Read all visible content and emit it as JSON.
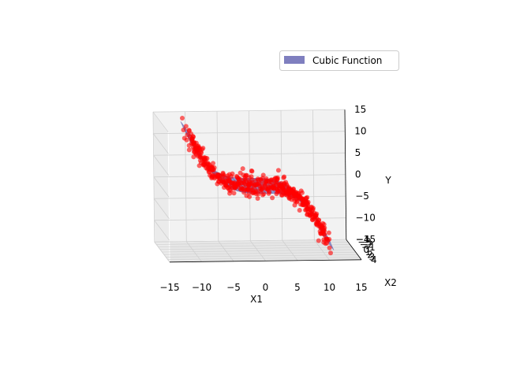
{
  "chart_data": {
    "type": "scatter",
    "projection": "3d",
    "title": "",
    "xlabel": "X1",
    "ylabel": "X2",
    "zlabel": "Y",
    "xlim": [
      -15,
      15
    ],
    "ylim": [
      -4,
      4
    ],
    "zlim": [
      -15,
      15
    ],
    "x_ticks": [
      "−15",
      "−10",
      "−5",
      "0",
      "5",
      "10",
      "15"
    ],
    "x_tick_values": [
      -15,
      -10,
      -5,
      0,
      5,
      10,
      15
    ],
    "y_ticks": [
      "−4",
      "−3",
      "−2",
      "−1",
      "0",
      "1",
      "2",
      "3",
      "4"
    ],
    "y_tick_values": [
      -4,
      -3,
      -2,
      -1,
      0,
      1,
      2,
      3,
      4
    ],
    "z_ticks": [
      "−15",
      "−10",
      "−5",
      "0",
      "5",
      "10",
      "15"
    ],
    "z_tick_values": [
      -15,
      -10,
      -5,
      0,
      5,
      10,
      15
    ],
    "grid": true,
    "legend": {
      "position": "top-right",
      "entries": [
        {
          "label": "Cubic Function",
          "color": "#7f7fbf"
        }
      ]
    },
    "series": [
      {
        "kind": "surface",
        "function": "y = -0.01 * x1^3",
        "color": "#6a6ab5",
        "alpha": 0.7
      },
      {
        "kind": "scatter",
        "x1_range": [
          -11,
          11
        ],
        "x2_range": [
          -3,
          3
        ],
        "count": 500,
        "color": "#ff0000",
        "noise": 1.0
      }
    ]
  }
}
